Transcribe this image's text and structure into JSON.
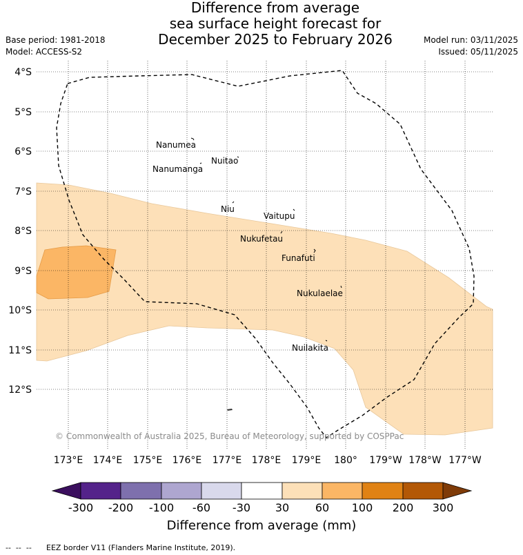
{
  "title": {
    "line1": "Difference from average",
    "line2": "sea surface height forecast for",
    "line3": "December 2025 to February 2026"
  },
  "meta": {
    "base_period": "Base period: 1981-2018",
    "model": "Model: ACCESS-S2",
    "model_run": "Model run: 03/11/2025",
    "issued": "Issued: 05/11/2025"
  },
  "map": {
    "lat_labels": [
      "4°S",
      "5°S",
      "6°S",
      "7°S",
      "8°S",
      "9°S",
      "10°S",
      "11°S",
      "12°S"
    ],
    "lon_labels": [
      "173°E",
      "174°E",
      "175°E",
      "176°E",
      "177°E",
      "178°E",
      "179°E",
      "180°",
      "179°W",
      "178°W",
      "177°W"
    ],
    "islands": [
      "Nanumea",
      "Nuitao",
      "Nanumanga",
      "Niu",
      "Vaitupu",
      "Nukufetau",
      "Funafuti",
      "Nukulaelae",
      "Nuilakita"
    ],
    "copyright": "© Commonwealth of Australia 2025, Bureau of Meteorology, supported by COSPPac",
    "fill_colors": {
      "light_orange": "#fde0b8",
      "medium_orange": "#fbb665"
    }
  },
  "colorbar": {
    "ticks": [
      "-300",
      "-200",
      "-100",
      "-60",
      "-30",
      "30",
      "60",
      "100",
      "200",
      "300"
    ],
    "colors": [
      "#3b0f5e",
      "#54238a",
      "#7e70ad",
      "#aea6d0",
      "#d9d9ec",
      "#ffffff",
      "#fde0b8",
      "#fbb665",
      "#e08214",
      "#b35806",
      "#7f3b08"
    ],
    "title": "Difference from average (mm)"
  },
  "footer": {
    "legend_dashes": "--  --  --",
    "legend_text": "EEZ border V11 (Flanders Marine Institute, 2019)."
  }
}
